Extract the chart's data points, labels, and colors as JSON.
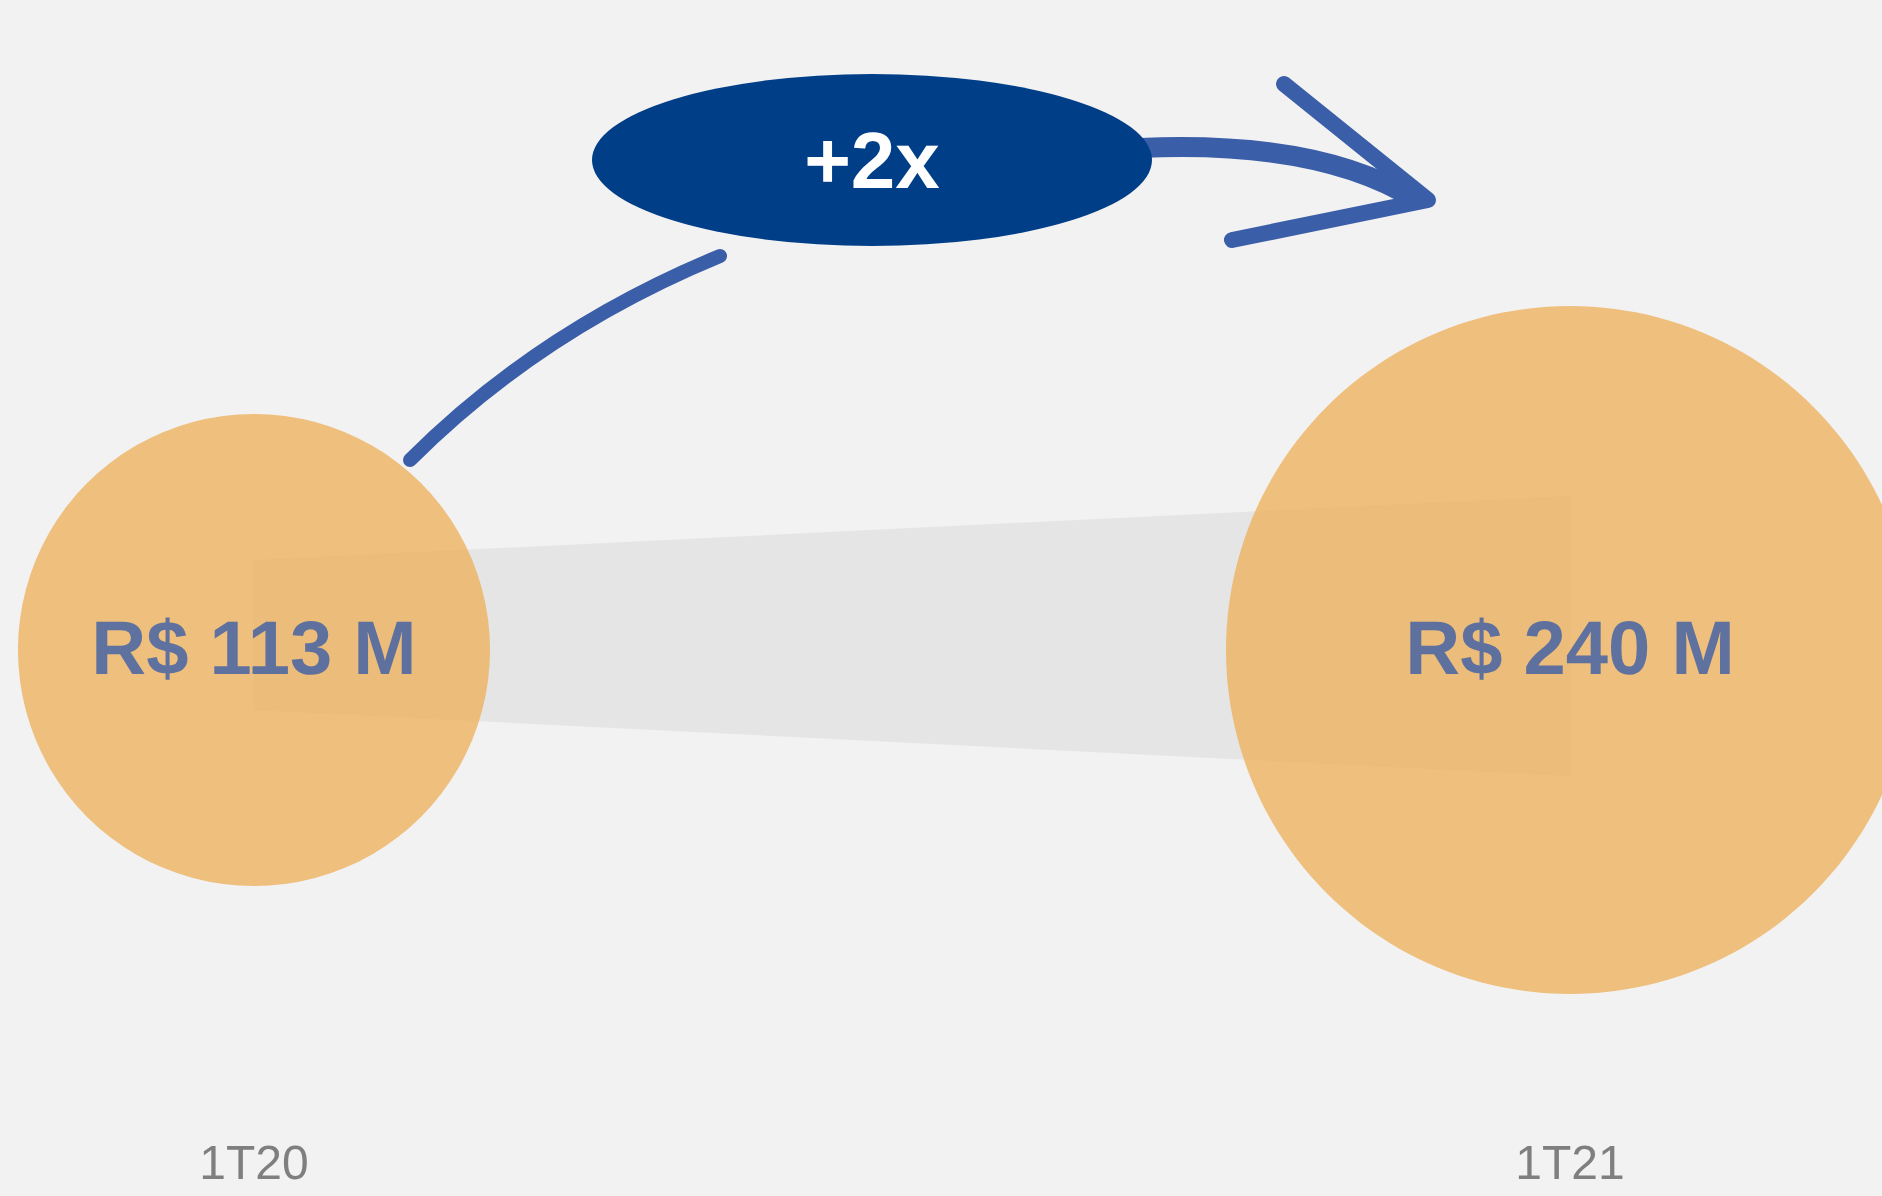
{
  "chart_data": {
    "type": "other",
    "categories": [
      "1T20",
      "1T21"
    ],
    "values": [
      113,
      240
    ],
    "value_labels": [
      "R$ 113 M",
      "R$ 240 M"
    ],
    "colors": [
      "#eeb25f",
      "#eeb25f"
    ],
    "annotations": [
      "+2x"
    ]
  }
}
